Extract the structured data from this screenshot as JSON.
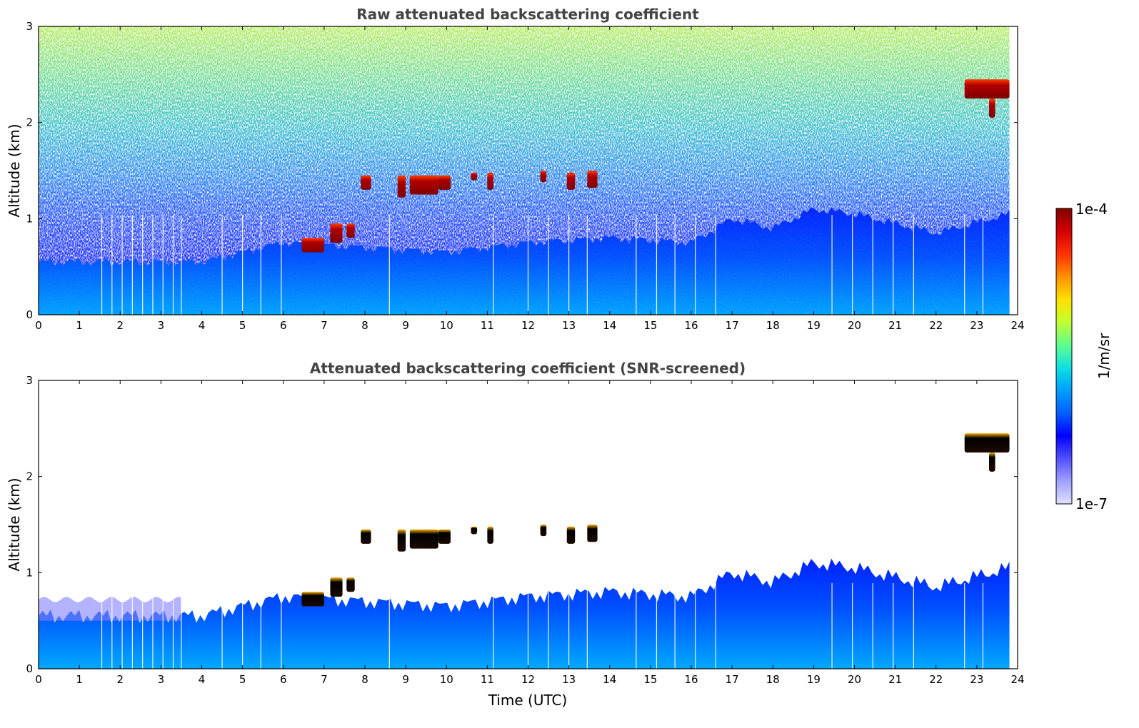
{
  "chart_data": [
    {
      "type": "heatmap",
      "id": "raw",
      "title": "Raw attenuated backscattering coefficient",
      "xlabel": "",
      "ylabel": "Altitude (km)",
      "xlim": [
        0,
        24
      ],
      "ylim": [
        0,
        3
      ],
      "xticks": [
        0,
        1,
        2,
        3,
        4,
        5,
        6,
        7,
        8,
        9,
        10,
        11,
        12,
        13,
        14,
        15,
        16,
        17,
        18,
        19,
        20,
        21,
        22,
        23,
        24
      ],
      "yticks": [
        0,
        1,
        2,
        3
      ],
      "colorscale": "jet",
      "data_end_time": 23.8,
      "boundary_layer": {
        "time": [
          0,
          4,
          6,
          8,
          10,
          12,
          14,
          16,
          17,
          18,
          19,
          20,
          22,
          23.8
        ],
        "top_km": [
          0.55,
          0.55,
          0.75,
          0.7,
          0.65,
          0.75,
          0.8,
          0.75,
          1.0,
          0.9,
          1.1,
          1.05,
          0.85,
          1.05
        ]
      },
      "cloud_segments": [
        {
          "t0": 6.45,
          "t1": 7.0,
          "z0": 0.65,
          "z1": 0.8
        },
        {
          "t0": 7.15,
          "t1": 7.45,
          "z0": 0.75,
          "z1": 0.95
        },
        {
          "t0": 7.55,
          "t1": 7.75,
          "z0": 0.8,
          "z1": 0.95
        },
        {
          "t0": 7.9,
          "t1": 8.15,
          "z0": 1.3,
          "z1": 1.45
        },
        {
          "t0": 8.8,
          "t1": 9.0,
          "z0": 1.22,
          "z1": 1.45
        },
        {
          "t0": 9.1,
          "t1": 9.8,
          "z0": 1.25,
          "z1": 1.45
        },
        {
          "t0": 9.8,
          "t1": 10.1,
          "z0": 1.3,
          "z1": 1.45
        },
        {
          "t0": 10.6,
          "t1": 10.75,
          "z0": 1.4,
          "z1": 1.48
        },
        {
          "t0": 11.0,
          "t1": 11.15,
          "z0": 1.3,
          "z1": 1.48
        },
        {
          "t0": 12.3,
          "t1": 12.45,
          "z0": 1.38,
          "z1": 1.5
        },
        {
          "t0": 12.95,
          "t1": 13.15,
          "z0": 1.3,
          "z1": 1.48
        },
        {
          "t0": 13.45,
          "t1": 13.7,
          "z0": 1.32,
          "z1": 1.5
        },
        {
          "t0": 22.7,
          "t1": 23.8,
          "z0": 2.25,
          "z1": 2.45
        },
        {
          "t0": 23.3,
          "t1": 23.45,
          "z0": 2.05,
          "z1": 2.25
        }
      ]
    },
    {
      "type": "heatmap",
      "id": "snr",
      "title": "Attenuated backscattering coefficient (SNR-screened)",
      "xlabel": "Time (UTC)",
      "ylabel": "Altitude (km)",
      "xlim": [
        0,
        24
      ],
      "ylim": [
        0,
        3
      ],
      "xticks": [
        0,
        1,
        2,
        3,
        4,
        5,
        6,
        7,
        8,
        9,
        10,
        11,
        12,
        13,
        14,
        15,
        16,
        17,
        18,
        19,
        20,
        21,
        22,
        23,
        24
      ],
      "yticks": [
        0,
        1,
        2,
        3
      ],
      "colorscale": "jet",
      "data_end_time": 23.8
    }
  ],
  "colorbar": {
    "label": "1/m/sr",
    "max_label": "1e-4",
    "min_label": "1e-7",
    "colors": [
      "#7f0000",
      "#d40000",
      "#ff3000",
      "#ff9000",
      "#ffe000",
      "#c0ff30",
      "#60ff90",
      "#10e0e0",
      "#00a0ff",
      "#0060ff",
      "#0000ff",
      "#5050ff",
      "#a0a0ff",
      "#e0e0ff"
    ]
  }
}
